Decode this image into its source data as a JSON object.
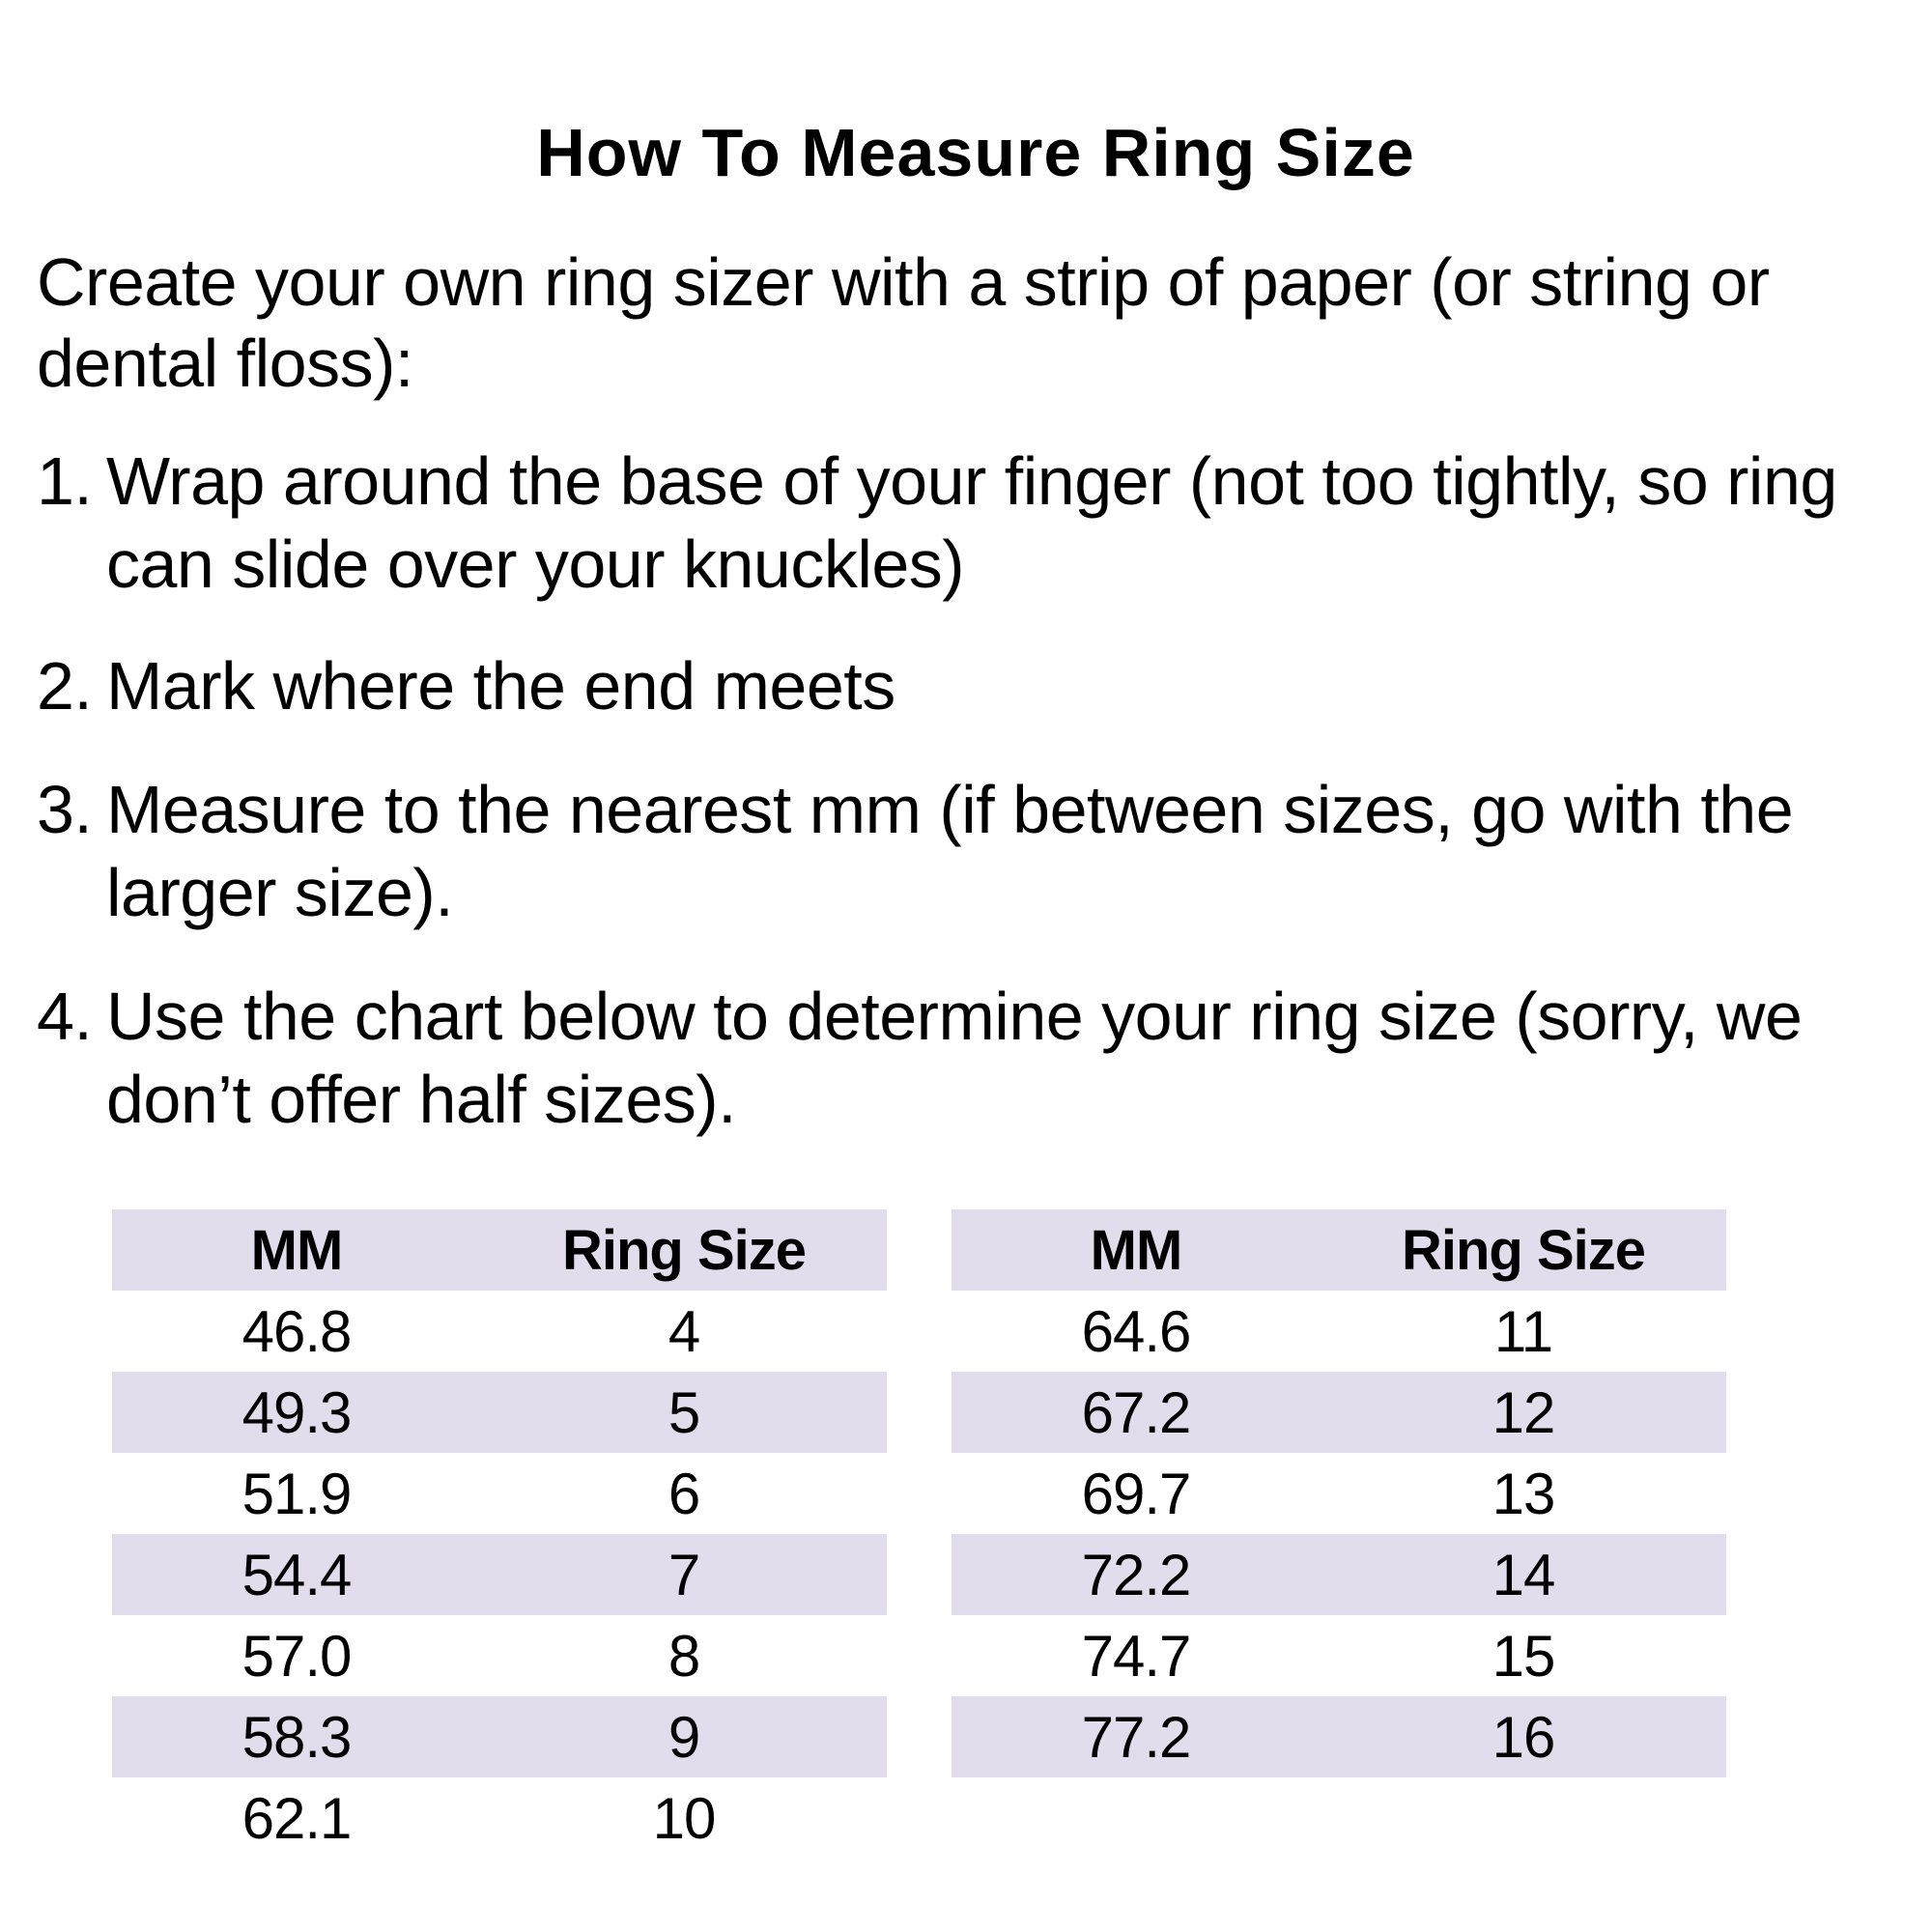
{
  "title": "How To Measure Ring Size",
  "intro": [
    "Create your own ring sizer with a strip of paper (or string or",
    "dental floss):"
  ],
  "steps": [
    {
      "num": "1.",
      "text": "Wrap around the base of your finger (not too tightly, so ring can slide over your knuckles)"
    },
    {
      "num": "2.",
      "text": "Mark where the end meets"
    },
    {
      "num": "3.",
      "text": "Measure to the nearest mm (if between sizes, go with the larger size)."
    },
    {
      "num": "4.",
      "text": "Use the chart below to determine your ring size (sorry, we don’t offer half sizes)."
    }
  ],
  "tables": [
    {
      "headers": [
        "MM",
        "Ring Size"
      ],
      "rows": [
        [
          "46.8",
          "4"
        ],
        [
          "49.3",
          "5"
        ],
        [
          "51.9",
          "6"
        ],
        [
          "54.4",
          "7"
        ],
        [
          "57.0",
          "8"
        ],
        [
          "58.3",
          "9"
        ],
        [
          "62.1",
          "10"
        ]
      ]
    },
    {
      "headers": [
        "MM",
        "Ring Size"
      ],
      "rows": [
        [
          "64.6",
          "11"
        ],
        [
          "67.2",
          "12"
        ],
        [
          "69.7",
          "13"
        ],
        [
          "72.2",
          "14"
        ],
        [
          "74.7",
          "15"
        ],
        [
          "77.2",
          "16"
        ]
      ]
    }
  ],
  "colors": {
    "shade": "#e1dded"
  }
}
